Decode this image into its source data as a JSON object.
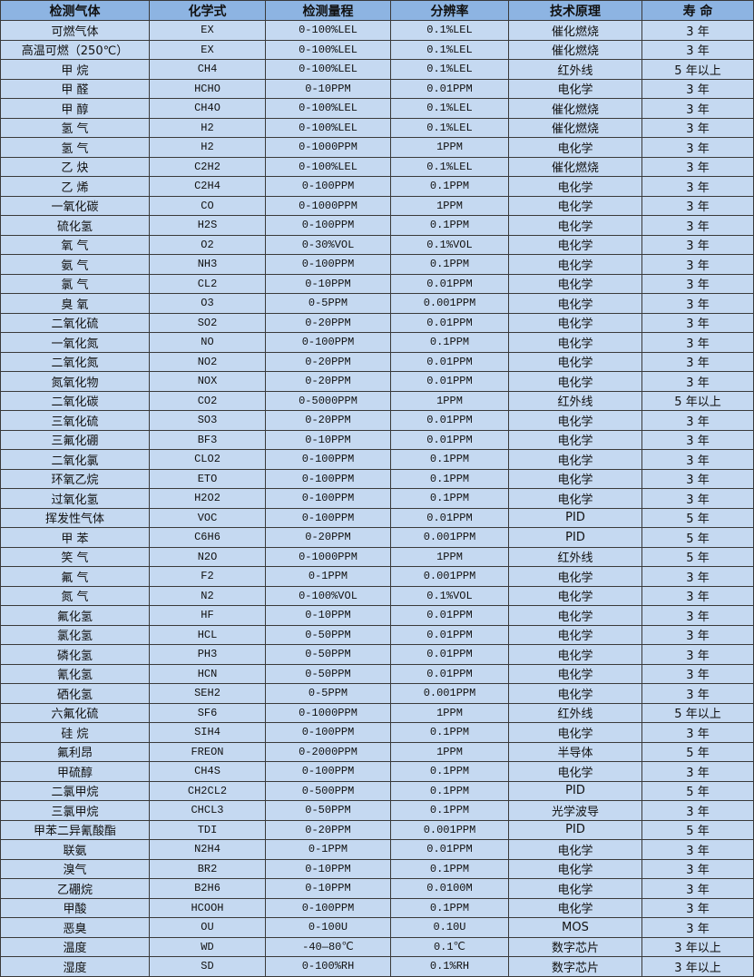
{
  "table": {
    "headers": [
      "检测气体",
      "化学式",
      "检测量程",
      "分辨率",
      "技术原理",
      "寿 命"
    ],
    "rows": [
      [
        "可燃气体",
        "EX",
        "0-100%LEL",
        "0.1%LEL",
        "催化燃烧",
        "3 年"
      ],
      [
        "高温可燃（250℃）",
        "EX",
        "0-100%LEL",
        "0.1%LEL",
        "催化燃烧",
        "3 年"
      ],
      [
        "甲 烷",
        "CH4",
        "0-100%LEL",
        "0.1%LEL",
        "红外线",
        "5 年以上"
      ],
      [
        "甲 醛",
        "HCHO",
        "0-10PPM",
        "0.01PPM",
        "电化学",
        "3 年"
      ],
      [
        "甲 醇",
        "CH4O",
        "0-100%LEL",
        "0.1%LEL",
        "催化燃烧",
        "3 年"
      ],
      [
        "氢 气",
        "H2",
        "0-100%LEL",
        "0.1%LEL",
        "催化燃烧",
        "3 年"
      ],
      [
        "氢 气",
        "H2",
        "0-1000PPM",
        "1PPM",
        "电化学",
        "3 年"
      ],
      [
        "乙 炔",
        "C2H2",
        "0-100%LEL",
        "0.1%LEL",
        "催化燃烧",
        "3 年"
      ],
      [
        "乙 烯",
        "C2H4",
        "0-100PPM",
        "0.1PPM",
        "电化学",
        "3 年"
      ],
      [
        "一氧化碳",
        "CO",
        "0-1000PPM",
        "1PPM",
        "电化学",
        "3 年"
      ],
      [
        "硫化氢",
        "H2S",
        "0-100PPM",
        "0.1PPM",
        "电化学",
        "3 年"
      ],
      [
        "氧 气",
        "O2",
        "0-30%VOL",
        "0.1%VOL",
        "电化学",
        "3 年"
      ],
      [
        "氨 气",
        "NH3",
        "0-100PPM",
        "0.1PPM",
        "电化学",
        "3 年"
      ],
      [
        "氯 气",
        "CL2",
        "0-10PPM",
        "0.01PPM",
        "电化学",
        "3 年"
      ],
      [
        "臭 氧",
        "O3",
        "0-5PPM",
        "0.001PPM",
        "电化学",
        "3 年"
      ],
      [
        "二氧化硫",
        "SO2",
        "0-20PPM",
        "0.01PPM",
        "电化学",
        "3 年"
      ],
      [
        "一氧化氮",
        "NO",
        "0-100PPM",
        "0.1PPM",
        "电化学",
        "3 年"
      ],
      [
        "二氧化氮",
        "NO2",
        "0-20PPM",
        "0.01PPM",
        "电化学",
        "3 年"
      ],
      [
        "氮氧化物",
        "NOX",
        "0-20PPM",
        "0.01PPM",
        "电化学",
        "3 年"
      ],
      [
        "二氧化碳",
        "CO2",
        "0-5000PPM",
        "1PPM",
        "红外线",
        "5 年以上"
      ],
      [
        "三氧化硫",
        "SO3",
        "0-20PPM",
        "0.01PPM",
        "电化学",
        "3 年"
      ],
      [
        "三氟化硼",
        "BF3",
        "0-10PPM",
        "0.01PPM",
        "电化学",
        "3 年"
      ],
      [
        "二氧化氯",
        "CLO2",
        "0-100PPM",
        "0.1PPM",
        "电化学",
        "3 年"
      ],
      [
        "环氧乙烷",
        "ETO",
        "0-100PPM",
        "0.1PPM",
        "电化学",
        "3 年"
      ],
      [
        "过氧化氢",
        "H2O2",
        "0-100PPM",
        "0.1PPM",
        "电化学",
        "3 年"
      ],
      [
        "挥发性气体",
        "VOC",
        "0-100PPM",
        "0.01PPM",
        "PID",
        "5 年"
      ],
      [
        "甲 苯",
        "C6H6",
        "0-20PPM",
        "0.001PPM",
        "PID",
        "5 年"
      ],
      [
        "笑 气",
        "N2O",
        "0-1000PPM",
        "1PPM",
        "红外线",
        "5 年"
      ],
      [
        "氟 气",
        "F2",
        "0-1PPM",
        "0.001PPM",
        "电化学",
        "3 年"
      ],
      [
        "氮 气",
        "N2",
        "0-100%VOL",
        "0.1%VOL",
        "电化学",
        "3 年"
      ],
      [
        "氟化氢",
        "HF",
        "0-10PPM",
        "0.01PPM",
        "电化学",
        "3 年"
      ],
      [
        "氯化氢",
        "HCL",
        "0-50PPM",
        "0.01PPM",
        "电化学",
        "3 年"
      ],
      [
        "磷化氢",
        "PH3",
        "0-50PPM",
        "0.01PPM",
        "电化学",
        "3 年"
      ],
      [
        "氰化氢",
        "HCN",
        "0-50PPM",
        "0.01PPM",
        "电化学",
        "3 年"
      ],
      [
        "硒化氢",
        "SEH2",
        "0-5PPM",
        "0.001PPM",
        "电化学",
        "3 年"
      ],
      [
        "六氟化硫",
        "SF6",
        "0-1000PPM",
        "1PPM",
        "红外线",
        "5 年以上"
      ],
      [
        "硅 烷",
        "SIH4",
        "0-100PPM",
        "0.1PPM",
        "电化学",
        "3 年"
      ],
      [
        "氟利昂",
        "FREON",
        "0-2000PPM",
        "1PPM",
        "半导体",
        "5 年"
      ],
      [
        "甲硫醇",
        "CH4S",
        "0-100PPM",
        "0.1PPM",
        "电化学",
        "3 年"
      ],
      [
        "二氯甲烷",
        "CH2CL2",
        "0-500PPM",
        "0.1PPM",
        "PID",
        "5 年"
      ],
      [
        "三氯甲烷",
        "CHCL3",
        "0-50PPM",
        "0.1PPM",
        "光学波导",
        "3 年"
      ],
      [
        "甲苯二异氰酸酯",
        "TDI",
        "0-20PPM",
        "0.001PPM",
        "PID",
        "5 年"
      ],
      [
        "联氨",
        "N2H4",
        "0-1PPM",
        "0.01PPM",
        "电化学",
        "3 年"
      ],
      [
        "溴气",
        "BR2",
        "0-10PPM",
        "0.1PPM",
        "电化学",
        "3 年"
      ],
      [
        "乙硼烷",
        "B2H6",
        "0-10PPM",
        "0.0100M",
        "电化学",
        "3 年"
      ],
      [
        "甲酸",
        "HCOOH",
        "0-100PPM",
        "0.1PPM",
        "电化学",
        "3 年"
      ],
      [
        "恶臭",
        "OU",
        "0-100U",
        "0.10U",
        "MOS",
        "3 年"
      ],
      [
        "温度",
        "WD",
        "-40—80℃",
        "0.1℃",
        "数字芯片",
        "3 年以上"
      ],
      [
        "湿度",
        "SD",
        "0-100%RH",
        "0.1%RH",
        "数字芯片",
        "3 年以上"
      ]
    ]
  },
  "colors": {
    "header_bg": "#8db4e2",
    "row_bg": "#c5d9f1",
    "border": "#3a3a3a"
  }
}
